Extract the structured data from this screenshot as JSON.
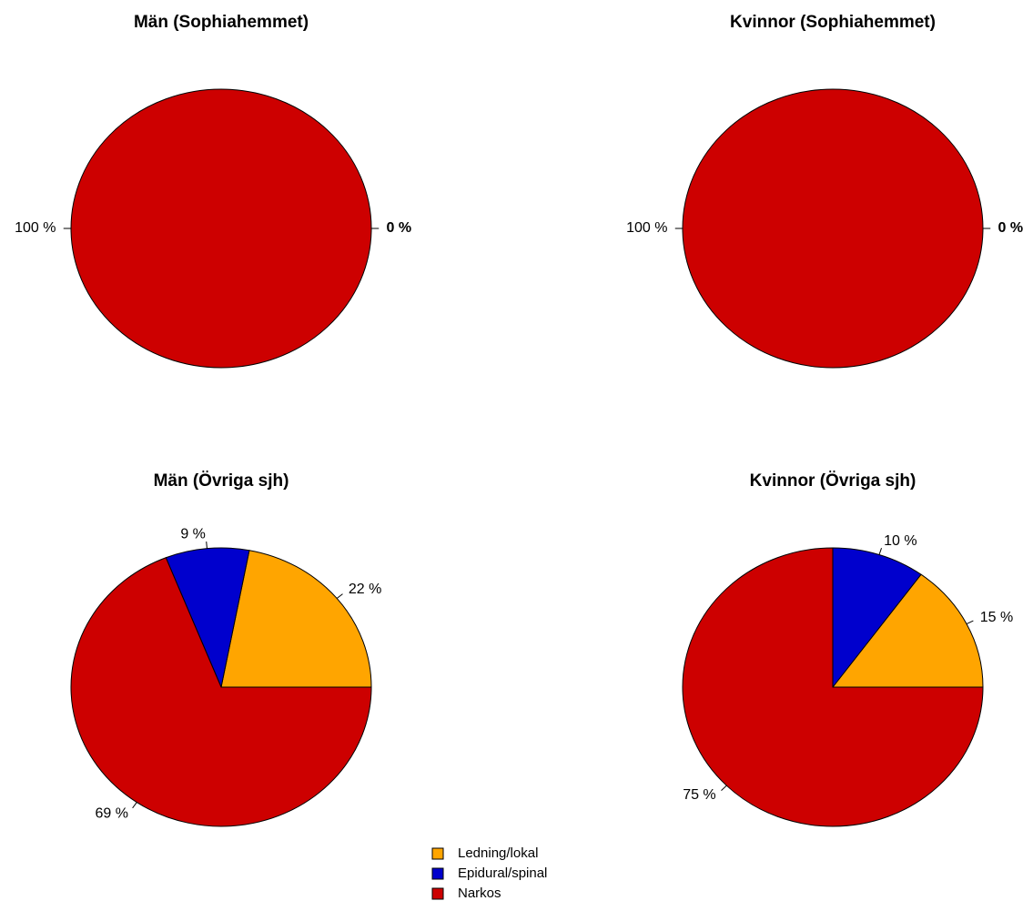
{
  "legend": [
    {
      "label": "Ledning/lokal",
      "color": "#FFA500"
    },
    {
      "label": "Epidural/spinal",
      "color": "#0000CD"
    },
    {
      "label": "Narkos",
      "color": "#CD0000"
    }
  ],
  "chart_data": [
    {
      "type": "pie",
      "title": "Män (Sophiahemmet)",
      "categories": [
        "Ledning/lokal",
        "Epidural/spinal",
        "Narkos"
      ],
      "values": [
        0,
        0,
        100
      ],
      "labels": [
        "0 %",
        "",
        "100 %"
      ]
    },
    {
      "type": "pie",
      "title": "Kvinnor (Sophiahemmet)",
      "categories": [
        "Ledning/lokal",
        "Epidural/spinal",
        "Narkos"
      ],
      "values": [
        0,
        0,
        100
      ],
      "labels": [
        "0 %",
        "",
        "100 %"
      ]
    },
    {
      "type": "pie",
      "title": "Män (Övriga sjh)",
      "categories": [
        "Ledning/lokal",
        "Epidural/spinal",
        "Narkos"
      ],
      "values": [
        22,
        9,
        69
      ],
      "labels": [
        "22 %",
        "9 %",
        "69 %"
      ]
    },
    {
      "type": "pie",
      "title": "Kvinnor (Övriga sjh)",
      "categories": [
        "Ledning/lokal",
        "Epidural/spinal",
        "Narkos"
      ],
      "values": [
        15,
        10,
        75
      ],
      "labels": [
        "15 %",
        "10 %",
        "75 %"
      ]
    }
  ]
}
